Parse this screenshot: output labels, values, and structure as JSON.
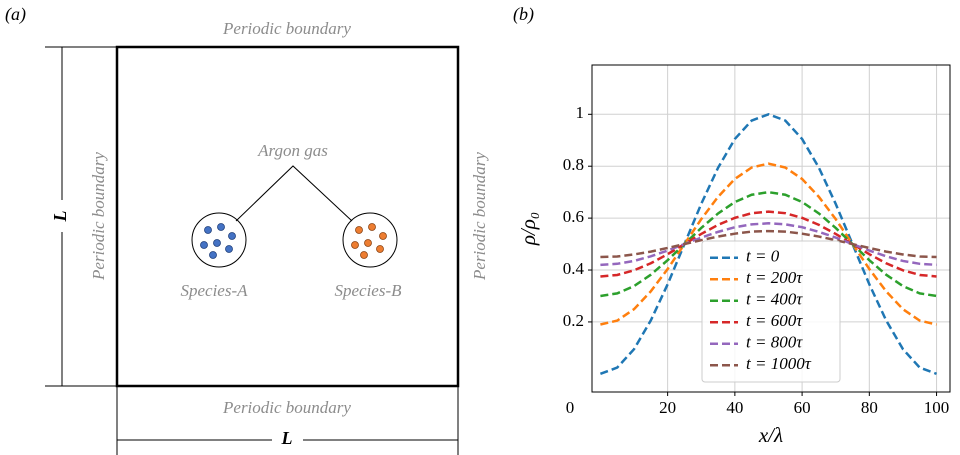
{
  "panel_a": {
    "label": "(a)",
    "boundary_labels": [
      "Periodic boundary",
      "Periodic boundary",
      "Periodic boundary",
      "Periodic boundary"
    ],
    "gas_label": "Argon gas",
    "species": [
      "Species-A",
      "Species-B"
    ],
    "length_label": "L"
  },
  "chart_data": {
    "type": "line",
    "panel_label": "(b)",
    "x_label": "x/λ",
    "y_label": "ρ/ρ₀",
    "origin_label": "0",
    "x": [
      0,
      5,
      10,
      15,
      20,
      25,
      30,
      35,
      40,
      45,
      50,
      55,
      60,
      65,
      70,
      75,
      80,
      85,
      90,
      95,
      100
    ],
    "series": [
      {
        "name": "t = 0",
        "color": "#1f77b4",
        "values": [
          0,
          0.024,
          0.095,
          0.206,
          0.345,
          0.5,
          0.655,
          0.794,
          0.905,
          0.976,
          1.0,
          0.976,
          0.905,
          0.794,
          0.655,
          0.5,
          0.345,
          0.206,
          0.095,
          0.024,
          0
        ]
      },
      {
        "name": "t = 200τ",
        "color": "#ff7f0e",
        "values": [
          0.19,
          0.205,
          0.249,
          0.318,
          0.404,
          0.5,
          0.596,
          0.682,
          0.751,
          0.795,
          0.81,
          0.795,
          0.751,
          0.682,
          0.596,
          0.5,
          0.404,
          0.318,
          0.249,
          0.205,
          0.19
        ]
      },
      {
        "name": "t = 400τ",
        "color": "#2ca02c",
        "values": [
          0.3,
          0.31,
          0.338,
          0.382,
          0.438,
          0.5,
          0.562,
          0.618,
          0.662,
          0.69,
          0.7,
          0.69,
          0.662,
          0.618,
          0.562,
          0.5,
          0.438,
          0.382,
          0.338,
          0.31,
          0.3
        ]
      },
      {
        "name": "t = 600τ",
        "color": "#d62728",
        "values": [
          0.375,
          0.381,
          0.399,
          0.426,
          0.461,
          0.5,
          0.539,
          0.574,
          0.601,
          0.619,
          0.625,
          0.619,
          0.601,
          0.574,
          0.539,
          0.5,
          0.461,
          0.426,
          0.399,
          0.381,
          0.375
        ]
      },
      {
        "name": "t = 800τ",
        "color": "#9467bd",
        "values": [
          0.42,
          0.424,
          0.435,
          0.453,
          0.475,
          0.5,
          0.525,
          0.547,
          0.565,
          0.576,
          0.58,
          0.576,
          0.565,
          0.547,
          0.525,
          0.5,
          0.475,
          0.453,
          0.435,
          0.424,
          0.42
        ]
      },
      {
        "name": "t = 1000τ",
        "color": "#8c564b",
        "values": [
          0.45,
          0.452,
          0.46,
          0.471,
          0.485,
          0.5,
          0.515,
          0.529,
          0.54,
          0.548,
          0.55,
          0.548,
          0.54,
          0.529,
          0.515,
          0.5,
          0.485,
          0.471,
          0.46,
          0.452,
          0.45
        ]
      }
    ],
    "xlim": [
      -2.5,
      104
    ],
    "ylim": [
      -0.07,
      1.19
    ],
    "xticks": [
      20,
      40,
      60,
      80,
      100
    ],
    "yticks": [
      0.2,
      0.4,
      0.6,
      0.8,
      1.0
    ],
    "grid": true,
    "legend": "lower center"
  }
}
